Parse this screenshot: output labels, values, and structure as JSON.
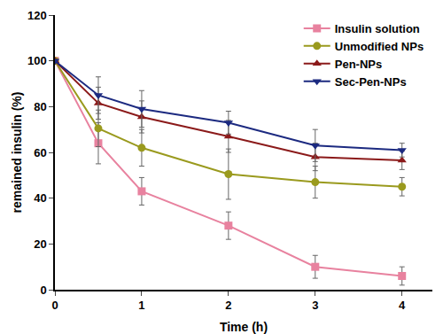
{
  "chart_data": {
    "type": "line",
    "x_label": "Time (h)",
    "y_label": "remained insulin (%)",
    "x": [
      0,
      0.5,
      1,
      2,
      3,
      4
    ],
    "xlim": [
      0,
      4.35
    ],
    "xticks": [
      0,
      1,
      2,
      3,
      4
    ],
    "ylim": [
      0,
      120
    ],
    "yticks": [
      0,
      20,
      40,
      60,
      80,
      100,
      120
    ],
    "grid": false,
    "legend": "top right",
    "series": [
      {
        "name": "Insulin solution",
        "color": "#e8829f",
        "marker": "square",
        "line_style": "solid",
        "values": [
          100,
          64,
          43,
          28,
          10,
          6
        ],
        "error": [
          0,
          9,
          6,
          6,
          5,
          4
        ]
      },
      {
        "name": "Unmodified NPs",
        "color": "#9a9a1e",
        "marker": "circle",
        "line_style": "solid",
        "values": [
          100,
          70.5,
          62,
          50.5,
          47,
          45
        ],
        "error": [
          0,
          8,
          8,
          11,
          7,
          4
        ]
      },
      {
        "name": "Pen-NPs",
        "color": "#8b1a1a",
        "marker": "triangle-up",
        "line_style": "solid",
        "values": [
          100,
          81.5,
          75.5,
          67,
          58,
          56.5
        ],
        "error": [
          0,
          7,
          7,
          7,
          6,
          4
        ]
      },
      {
        "name": "Sec-Pen-NPs",
        "color": "#1c2a80",
        "marker": "triangle-down",
        "line_style": "solid",
        "values": [
          100,
          85,
          79,
          73,
          63,
          61
        ],
        "error": [
          0,
          8,
          8,
          5,
          7,
          3
        ]
      }
    ]
  }
}
